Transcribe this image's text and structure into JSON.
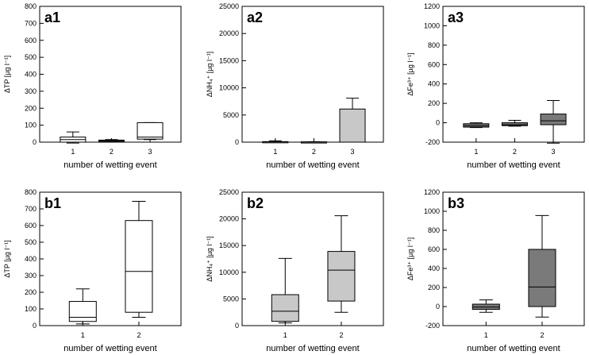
{
  "chart_data": [
    {
      "id": "a1",
      "type": "box",
      "panel_label": "a1",
      "ylabel": "ΔTP [µg l⁻¹]",
      "ylabel_parts": [
        "ΔTP [µg l",
        ""
      ],
      "xlabel": "number of wetting event",
      "ylim": [
        0,
        800
      ],
      "yticks": [
        0,
        100,
        200,
        300,
        400,
        500,
        600,
        700,
        800
      ],
      "categories": [
        "1",
        "2",
        "3"
      ],
      "fill": "#ffffff",
      "boxes": [
        {
          "min": -5,
          "q1": 0,
          "median": 15,
          "q3": 30,
          "max": 60
        },
        {
          "min": 2,
          "q1": 5,
          "median": 10,
          "q3": 12,
          "max": 15
        },
        {
          "min": 15,
          "q1": 18,
          "median": 30,
          "q3": 115,
          "max": 115
        }
      ]
    },
    {
      "id": "a2",
      "type": "box",
      "panel_label": "a2",
      "ylabel": "ΔNH₄⁺ [µg l⁻¹]",
      "xlabel": "number of wetting event",
      "ylim": [
        0,
        25000
      ],
      "yticks": [
        0,
        5000,
        10000,
        15000,
        20000,
        25000
      ],
      "categories": [
        "1",
        "2",
        "3"
      ],
      "fill": "#c8c8c8",
      "boxes": [
        {
          "min": 0,
          "q1": 30,
          "median": 60,
          "q3": 100,
          "max": 250
        },
        {
          "min": 0,
          "q1": 20,
          "median": 40,
          "q3": 60,
          "max": 100
        },
        {
          "min": 0,
          "q1": 0,
          "median": 0,
          "q3": 6100,
          "max": 8100
        }
      ]
    },
    {
      "id": "a3",
      "type": "box",
      "panel_label": "a3",
      "ylabel": "ΔFe³⁺ [µg l⁻¹]",
      "xlabel": "number of wetting event",
      "ylim": [
        -200,
        1200
      ],
      "yticks": [
        -200,
        0,
        200,
        400,
        600,
        800,
        1000,
        1200
      ],
      "categories": [
        "1",
        "2",
        "3"
      ],
      "fill": "#7a7a7a",
      "boxes": [
        {
          "min": -50,
          "q1": -45,
          "median": -30,
          "q3": -10,
          "max": 0
        },
        {
          "min": -35,
          "q1": -30,
          "median": -20,
          "q3": 0,
          "max": 25
        },
        {
          "min": -210,
          "q1": -20,
          "median": 20,
          "q3": 90,
          "max": 230
        }
      ]
    },
    {
      "id": "b1",
      "type": "box",
      "panel_label": "b1",
      "ylabel": "ΔTP [µg l⁻¹]",
      "xlabel": "number of wetting event",
      "ylim": [
        0,
        800
      ],
      "yticks": [
        0,
        100,
        200,
        300,
        400,
        500,
        600,
        700,
        800
      ],
      "categories": [
        "1",
        "2"
      ],
      "fill": "#ffffff",
      "boxes": [
        {
          "min": 10,
          "q1": 25,
          "median": 50,
          "q3": 145,
          "max": 220
        },
        {
          "min": 50,
          "q1": 80,
          "median": 325,
          "q3": 630,
          "max": 745
        }
      ]
    },
    {
      "id": "b2",
      "type": "box",
      "panel_label": "b2",
      "ylabel": "ΔNH₄⁺ [µg l⁻¹]",
      "xlabel": "number of wetting event",
      "ylim": [
        0,
        25000
      ],
      "yticks": [
        0,
        5000,
        10000,
        15000,
        20000,
        25000
      ],
      "categories": [
        "1",
        "2"
      ],
      "fill": "#c8c8c8",
      "boxes": [
        {
          "min": 500,
          "q1": 800,
          "median": 2700,
          "q3": 5800,
          "max": 12600
        },
        {
          "min": 2500,
          "q1": 4600,
          "median": 10400,
          "q3": 13900,
          "max": 20600
        }
      ]
    },
    {
      "id": "b3",
      "type": "box",
      "panel_label": "b3",
      "ylabel": "ΔFe³⁺ [µg l⁻¹]",
      "xlabel": "number of wetting event",
      "ylim": [
        -200,
        1200
      ],
      "yticks": [
        -200,
        0,
        200,
        400,
        600,
        800,
        1000,
        1200
      ],
      "categories": [
        "1",
        "2"
      ],
      "fill": "#7a7a7a",
      "boxes": [
        {
          "min": -60,
          "q1": -30,
          "median": -5,
          "q3": 25,
          "max": 70
        },
        {
          "min": -110,
          "q1": 0,
          "median": 205,
          "q3": 600,
          "max": 955
        }
      ]
    }
  ]
}
